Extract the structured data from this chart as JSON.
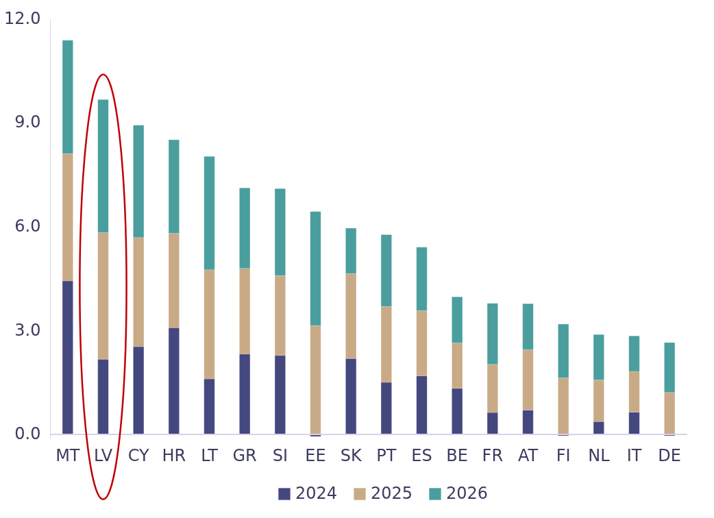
{
  "chart_data": {
    "type": "bar",
    "stacked": true,
    "categories": [
      "MT",
      "LV",
      "CY",
      "HR",
      "LT",
      "GR",
      "SI",
      "EE",
      "SK",
      "PT",
      "ES",
      "BE",
      "FR",
      "AT",
      "FI",
      "NL",
      "IT",
      "DE"
    ],
    "series": [
      {
        "name": "2024",
        "color": "#45487e",
        "values": [
          4.43,
          2.17,
          2.53,
          3.08,
          1.6,
          2.32,
          2.28,
          -0.06,
          2.19,
          1.5,
          1.69,
          1.33,
          0.63,
          0.7,
          -0.04,
          0.37,
          0.64,
          -0.04
        ]
      },
      {
        "name": "2025",
        "color": "#c9aa86",
        "values": [
          3.67,
          3.65,
          3.15,
          2.72,
          3.15,
          2.47,
          2.3,
          3.14,
          2.45,
          2.19,
          1.88,
          1.31,
          1.39,
          1.74,
          1.63,
          1.2,
          1.18,
          1.21
        ]
      },
      {
        "name": "2026",
        "color": "#4a9e9e",
        "values": [
          3.27,
          3.84,
          3.24,
          2.7,
          3.27,
          2.32,
          2.51,
          3.29,
          1.31,
          2.07,
          1.83,
          1.33,
          1.76,
          1.33,
          1.55,
          1.31,
          1.02,
          1.44
        ]
      }
    ],
    "ylim": [
      -0.1,
      12
    ],
    "yticks": [
      {
        "value": 0,
        "label": "0.0"
      },
      {
        "value": 3,
        "label": "3.0"
      },
      {
        "value": 6,
        "label": "6.0"
      },
      {
        "value": 9,
        "label": "9.0"
      },
      {
        "value": 12,
        "label": "12.0"
      }
    ],
    "grid": false,
    "legend": "bottom"
  }
}
